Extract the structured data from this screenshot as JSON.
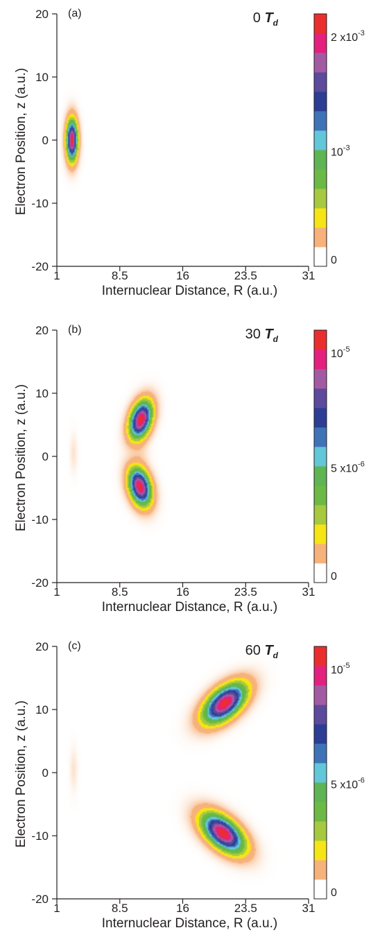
{
  "colorscale": [
    "#ffffff",
    "#f7b27b",
    "#f5e515",
    "#a6c93f",
    "#6cb945",
    "#5fb454",
    "#62c7d9",
    "#3f73b8",
    "#2c3e94",
    "#5c4a9c",
    "#a25ba3",
    "#e4207e",
    "#ea2e2e"
  ],
  "chart_data": [
    {
      "type": "heatmap",
      "panel_label": "(a)",
      "time_label": "0",
      "time_unit": "T",
      "time_unit_sub": "d",
      "xlabel": "Internuclear Distance, R (a.u.)",
      "ylabel": "Electron Position, z (a.u.)",
      "xlim": [
        1,
        31
      ],
      "ylim": [
        -20,
        20
      ],
      "xticks": [
        "1",
        "8.5",
        "16",
        "23.5",
        "31"
      ],
      "yticks": [
        "20",
        "10",
        "0",
        "-10",
        "-20"
      ],
      "colorbar": {
        "range": [
          0,
          0.0022
        ],
        "ticks": [
          {
            "value": 0.002,
            "base": "2 x10",
            "exp": "-3"
          },
          {
            "value": 0.001,
            "base": "10",
            "exp": "-3"
          },
          {
            "value": 0,
            "base": "0",
            "exp": ""
          }
        ]
      },
      "peaks": [
        {
          "R": 2.8,
          "z": 0.0,
          "sigma_R": 0.45,
          "sigma_z": 2.2,
          "rho": 0.0,
          "amplitude": 0.0021
        }
      ],
      "faint": []
    },
    {
      "type": "heatmap",
      "panel_label": "(b)",
      "time_label": "30",
      "time_unit": "T",
      "time_unit_sub": "d",
      "xlabel": "Internuclear Distance, R (a.u.)",
      "ylabel": "Electron Position, z (a.u.)",
      "xlim": [
        1,
        31
      ],
      "ylim": [
        -20,
        20
      ],
      "xticks": [
        "1",
        "8.5",
        "16",
        "23.5",
        "31"
      ],
      "yticks": [
        "20",
        "10",
        "0",
        "-10",
        "-20"
      ],
      "colorbar": {
        "range": [
          0,
          1.1e-05
        ],
        "ticks": [
          {
            "value": 1e-05,
            "base": "10",
            "exp": "-5"
          },
          {
            "value": 5e-06,
            "base": "5 x10",
            "exp": "-6"
          },
          {
            "value": 0,
            "base": "0",
            "exp": ""
          }
        ]
      },
      "peaks": [
        {
          "R": 11.0,
          "z": 5.8,
          "sigma_R": 0.9,
          "sigma_z": 2.0,
          "rho": 0.35,
          "amplitude": 1.07e-05
        },
        {
          "R": 10.9,
          "z": -4.8,
          "sigma_R": 0.9,
          "sigma_z": 2.0,
          "rho": -0.3,
          "amplitude": 1.05e-05
        }
      ],
      "faint": [
        {
          "R": 3.0,
          "z": 0.5,
          "sigma_R": 0.3,
          "sigma_z": 2.0,
          "amplitude": 4e-07
        },
        {
          "R": 11.2,
          "z": 0.5,
          "sigma_R": 0.6,
          "sigma_z": 1.2,
          "amplitude": 3e-07
        }
      ]
    },
    {
      "type": "heatmap",
      "panel_label": "(c)",
      "time_label": "60",
      "time_unit": "T",
      "time_unit_sub": "d",
      "xlabel": "Internuclear Distance, R (a.u.)",
      "ylabel": "Electron Position, z (a.u.)",
      "xlim": [
        1,
        31
      ],
      "ylim": [
        -20,
        20
      ],
      "xticks": [
        "1",
        "8.5",
        "16",
        "23.5",
        "31"
      ],
      "yticks": [
        "20",
        "10",
        "0",
        "-10",
        "-20"
      ],
      "colorbar": {
        "range": [
          0,
          1.1e-05
        ],
        "ticks": [
          {
            "value": 1e-05,
            "base": "10",
            "exp": "-5"
          },
          {
            "value": 5e-06,
            "base": "5 x10",
            "exp": "-6"
          },
          {
            "value": 0,
            "base": "0",
            "exp": ""
          }
        ]
      },
      "peaks": [
        {
          "R": 21.0,
          "z": 11.0,
          "sigma_R": 1.7,
          "sigma_z": 2.1,
          "rho": 0.55,
          "amplitude": 1.07e-05
        },
        {
          "R": 20.8,
          "z": -9.6,
          "sigma_R": 1.7,
          "sigma_z": 2.1,
          "rho": -0.55,
          "amplitude": 1.07e-05
        }
      ],
      "faint": [
        {
          "R": 3.0,
          "z": 0.5,
          "sigma_R": 0.3,
          "sigma_z": 2.3,
          "amplitude": 4e-07
        }
      ]
    }
  ]
}
